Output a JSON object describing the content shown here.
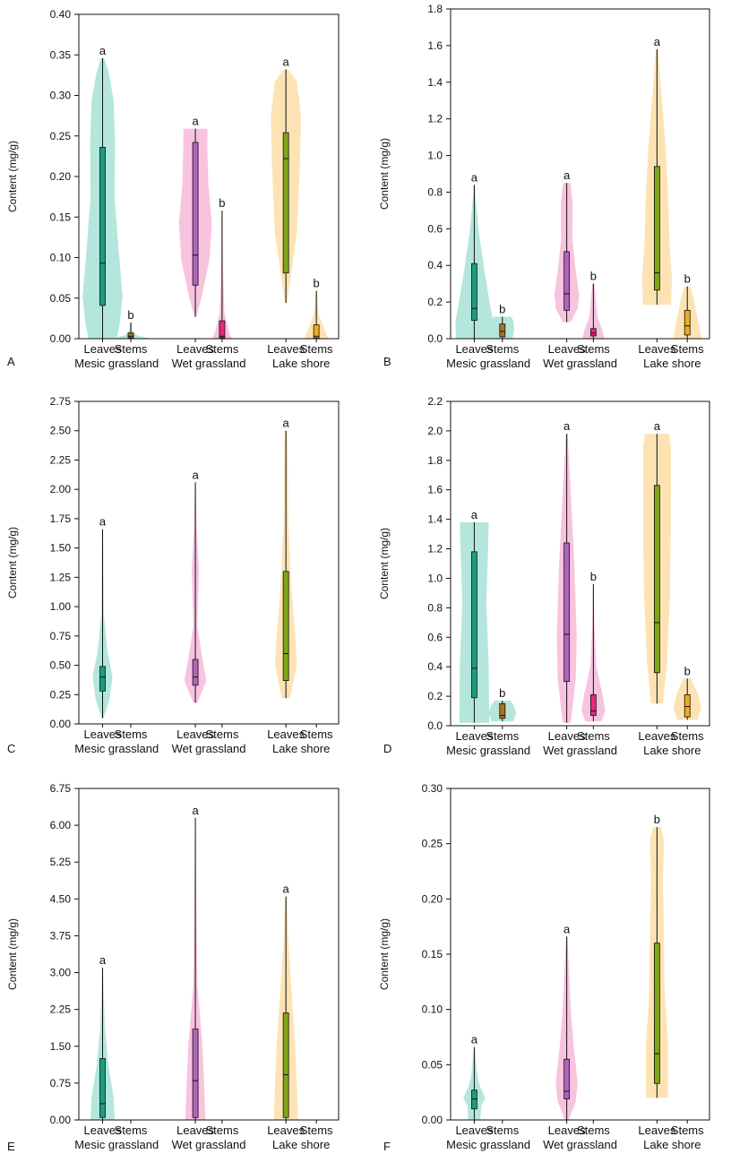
{
  "colors": {
    "mesic_leaves": "#1e9c7f",
    "mesic_leaves_violin": "#b4e6dc",
    "mesic_stems": "#a8741c",
    "mesic_stems_violin": "#b4e6dc",
    "wet_leaves": "#b163bd",
    "wet_leaves_violin": "#f8c3df",
    "wet_stems": "#e8287a",
    "wet_stems_violin": "#f8c3df",
    "lake_leaves": "#7fa51a",
    "lake_leaves_violin": "#fde3b4",
    "lake_stems": "#f2ab1d",
    "lake_stems_violin": "#fde3b4"
  },
  "chart_data": [
    {
      "type": "violin",
      "panel": "A",
      "ylabel": "Content (mg/g)",
      "ylim": [
        0,
        0.4
      ],
      "yticks": [
        "0.00",
        "0.05",
        "0.10",
        "0.15",
        "0.20",
        "0.25",
        "0.30",
        "0.35",
        "0.40"
      ],
      "categories": [
        "Leaves",
        "Stems",
        "Leaves",
        "Stems",
        "Leaves",
        "Stems"
      ],
      "groups": [
        "Mesic grassland",
        "Wet grassland",
        "Lake shore"
      ],
      "series": [
        {
          "group": "Mesic grassland",
          "part": "Leaves",
          "min": 0.0,
          "q1": 0.041,
          "median": 0.093,
          "q3": 0.236,
          "max": 0.346,
          "letter": "a"
        },
        {
          "group": "Mesic grassland",
          "part": "Stems",
          "min": 0.0,
          "q1": 0.001,
          "median": 0.003,
          "q3": 0.007,
          "max": 0.02,
          "letter": "b"
        },
        {
          "group": "Wet grassland",
          "part": "Leaves",
          "min": 0.027,
          "q1": 0.066,
          "median": 0.103,
          "q3": 0.242,
          "max": 0.259,
          "letter": "a"
        },
        {
          "group": "Wet grassland",
          "part": "Stems",
          "min": 0.0,
          "q1": 0.001,
          "median": 0.003,
          "q3": 0.022,
          "max": 0.158,
          "letter": "b"
        },
        {
          "group": "Lake shore",
          "part": "Leaves",
          "min": 0.044,
          "q1": 0.081,
          "median": 0.222,
          "q3": 0.254,
          "max": 0.332,
          "letter": "a"
        },
        {
          "group": "Lake shore",
          "part": "Stems",
          "min": 0.0,
          "q1": 0.001,
          "median": 0.003,
          "q3": 0.017,
          "max": 0.059,
          "letter": "b"
        }
      ]
    },
    {
      "type": "violin",
      "panel": "B",
      "ylabel": "Content (mg/g)",
      "ylim": [
        0,
        1.8
      ],
      "yticks": [
        "0.0",
        "0.2",
        "0.4",
        "0.6",
        "0.8",
        "1.0",
        "1.2",
        "1.4",
        "1.6",
        "1.8"
      ],
      "categories": [
        "Leaves",
        "Stems",
        "Leaves",
        "Stems",
        "Leaves",
        "Stems"
      ],
      "groups": [
        "Mesic grassland",
        "Wet grassland",
        "Lake shore"
      ],
      "series": [
        {
          "group": "Mesic grassland",
          "part": "Leaves",
          "min": 0.0,
          "q1": 0.1,
          "median": 0.165,
          "q3": 0.41,
          "max": 0.84,
          "letter": "a"
        },
        {
          "group": "Mesic grassland",
          "part": "Stems",
          "min": 0.0,
          "q1": 0.01,
          "median": 0.04,
          "q3": 0.08,
          "max": 0.12,
          "letter": "b"
        },
        {
          "group": "Wet grassland",
          "part": "Leaves",
          "min": 0.09,
          "q1": 0.155,
          "median": 0.245,
          "q3": 0.475,
          "max": 0.85,
          "letter": "a"
        },
        {
          "group": "Wet grassland",
          "part": "Stems",
          "min": 0.0,
          "q1": 0.015,
          "median": 0.03,
          "q3": 0.055,
          "max": 0.3,
          "letter": "b"
        },
        {
          "group": "Lake shore",
          "part": "Leaves",
          "min": 0.185,
          "q1": 0.265,
          "median": 0.36,
          "q3": 0.94,
          "max": 1.58,
          "letter": "a"
        },
        {
          "group": "Lake shore",
          "part": "Stems",
          "min": 0.0,
          "q1": 0.02,
          "median": 0.07,
          "q3": 0.155,
          "max": 0.285,
          "letter": "b"
        }
      ]
    },
    {
      "type": "violin",
      "panel": "C",
      "ylabel": "Content (mg/g)",
      "ylim": [
        0,
        2.75
      ],
      "yticks": [
        "0.00",
        "0.25",
        "0.50",
        "0.75",
        "1.00",
        "1.25",
        "1.50",
        "1.75",
        "2.00",
        "2.25",
        "2.50",
        "2.75"
      ],
      "categories": [
        "Leaves",
        "Stems",
        "Leaves",
        "Stems",
        "Leaves",
        "Stems"
      ],
      "groups": [
        "Mesic grassland",
        "Wet grassland",
        "Lake shore"
      ],
      "series": [
        {
          "group": "Mesic grassland",
          "part": "Leaves",
          "min": 0.05,
          "q1": 0.28,
          "median": 0.4,
          "q3": 0.49,
          "max": 1.66,
          "letter": "a"
        },
        {
          "group": "Mesic grassland",
          "part": "Stems"
        },
        {
          "group": "Wet grassland",
          "part": "Leaves",
          "min": 0.18,
          "q1": 0.33,
          "median": 0.4,
          "q3": 0.55,
          "max": 2.06,
          "letter": "a"
        },
        {
          "group": "Wet grassland",
          "part": "Stems"
        },
        {
          "group": "Lake shore",
          "part": "Leaves",
          "min": 0.22,
          "q1": 0.37,
          "median": 0.6,
          "q3": 1.3,
          "max": 2.5,
          "letter": "a"
        },
        {
          "group": "Lake shore",
          "part": "Stems"
        }
      ]
    },
    {
      "type": "violin",
      "panel": "D",
      "ylabel": "Content (mg/g)",
      "ylim": [
        0,
        2.2
      ],
      "yticks": [
        "0.0",
        "0.2",
        "0.4",
        "0.6",
        "0.8",
        "1.0",
        "1.2",
        "1.4",
        "1.6",
        "1.8",
        "2.0",
        "2.2"
      ],
      "categories": [
        "Leaves",
        "Stems",
        "Leaves",
        "Stems",
        "Leaves",
        "Stems"
      ],
      "groups": [
        "Mesic grassland",
        "Wet grassland",
        "Lake shore"
      ],
      "series": [
        {
          "group": "Mesic grassland",
          "part": "Leaves",
          "min": 0.02,
          "q1": 0.19,
          "median": 0.39,
          "q3": 1.18,
          "max": 1.38,
          "letter": "a"
        },
        {
          "group": "Mesic grassland",
          "part": "Stems",
          "min": 0.03,
          "q1": 0.05,
          "median": 0.07,
          "q3": 0.15,
          "max": 0.17,
          "letter": "b"
        },
        {
          "group": "Wet grassland",
          "part": "Leaves",
          "min": 0.02,
          "q1": 0.3,
          "median": 0.62,
          "q3": 1.24,
          "max": 1.98,
          "letter": "a"
        },
        {
          "group": "Wet grassland",
          "part": "Stems",
          "min": 0.03,
          "q1": 0.07,
          "median": 0.1,
          "q3": 0.21,
          "max": 0.96,
          "letter": "b"
        },
        {
          "group": "Lake shore",
          "part": "Leaves",
          "min": 0.15,
          "q1": 0.36,
          "median": 0.7,
          "q3": 1.63,
          "max": 1.98,
          "letter": "a"
        },
        {
          "group": "Lake shore",
          "part": "Stems",
          "min": 0.04,
          "q1": 0.06,
          "median": 0.13,
          "q3": 0.21,
          "max": 0.32,
          "letter": "b"
        }
      ]
    },
    {
      "type": "violin",
      "panel": "E",
      "ylabel": "Content (mg/g)",
      "ylim": [
        0,
        6.75
      ],
      "yticks": [
        "0.00",
        "0.75",
        "1.50",
        "2.25",
        "3.00",
        "3.75",
        "4.50",
        "5.25",
        "6.00",
        "6.75"
      ],
      "categories": [
        "Leaves",
        "Stems",
        "Leaves",
        "Stems",
        "Leaves",
        "Stems"
      ],
      "groups": [
        "Mesic grassland",
        "Wet grassland",
        "Lake shore"
      ],
      "series": [
        {
          "group": "Mesic grassland",
          "part": "Leaves",
          "min": 0.0,
          "q1": 0.05,
          "median": 0.33,
          "q3": 1.25,
          "max": 3.1,
          "letter": "a"
        },
        {
          "group": "Mesic grassland",
          "part": "Stems"
        },
        {
          "group": "Wet grassland",
          "part": "Leaves",
          "min": 0.0,
          "q1": 0.05,
          "median": 0.8,
          "q3": 1.85,
          "max": 6.15,
          "letter": "a"
        },
        {
          "group": "Wet grassland",
          "part": "Stems"
        },
        {
          "group": "Lake shore",
          "part": "Leaves",
          "min": 0.0,
          "q1": 0.05,
          "median": 0.92,
          "q3": 2.18,
          "max": 4.55,
          "letter": "a"
        },
        {
          "group": "Lake shore",
          "part": "Stems"
        }
      ]
    },
    {
      "type": "violin",
      "panel": "F",
      "ylabel": "Content (mg/g)",
      "ylim": [
        0,
        0.3
      ],
      "yticks": [
        "0.00",
        "0.05",
        "0.10",
        "0.15",
        "0.20",
        "0.25",
        "0.30"
      ],
      "categories": [
        "Leaves",
        "Stems",
        "Leaves",
        "Stems",
        "Leaves",
        "Stems"
      ],
      "groups": [
        "Mesic grassland",
        "Wet grassland",
        "Lake shore"
      ],
      "series": [
        {
          "group": "Mesic grassland",
          "part": "Leaves",
          "min": 0.0,
          "q1": 0.01,
          "median": 0.019,
          "q3": 0.027,
          "max": 0.066,
          "letter": "a"
        },
        {
          "group": "Mesic grassland",
          "part": "Stems"
        },
        {
          "group": "Wet grassland",
          "part": "Leaves",
          "min": 0.0,
          "q1": 0.019,
          "median": 0.026,
          "q3": 0.055,
          "max": 0.166,
          "letter": "a"
        },
        {
          "group": "Wet grassland",
          "part": "Stems"
        },
        {
          "group": "Lake shore",
          "part": "Leaves",
          "min": 0.02,
          "q1": 0.033,
          "median": 0.06,
          "q3": 0.16,
          "max": 0.265,
          "letter": "b"
        },
        {
          "group": "Lake shore",
          "part": "Stems"
        }
      ]
    }
  ]
}
